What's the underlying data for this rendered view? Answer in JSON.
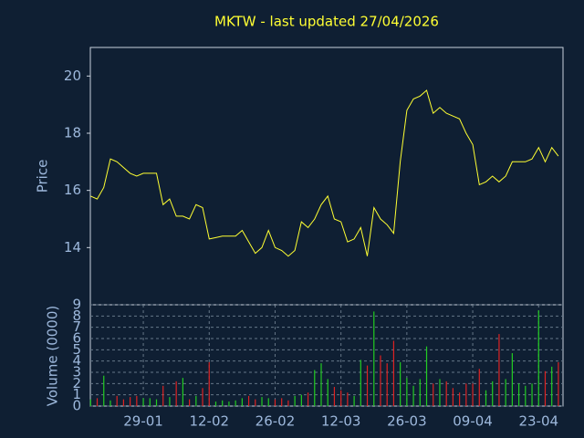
{
  "chart_data": [
    {
      "type": "line",
      "title": "MKTW - last updated 27/04/2026",
      "y_label": "Price",
      "color": "#ffff33",
      "ylim": [
        12,
        21
      ],
      "yticks": [
        14,
        16,
        18,
        20
      ],
      "grid": false,
      "values": [
        15.8,
        15.7,
        16.1,
        17.1,
        17.0,
        16.8,
        16.6,
        16.5,
        16.6,
        16.6,
        16.6,
        15.5,
        15.7,
        15.1,
        15.1,
        15.0,
        15.5,
        15.4,
        14.3,
        14.35,
        14.4,
        14.4,
        14.4,
        14.6,
        14.2,
        13.8,
        14.0,
        14.6,
        14.0,
        13.9,
        13.7,
        13.9,
        14.9,
        14.7,
        15.0,
        15.5,
        15.8,
        15.0,
        14.9,
        14.2,
        14.3,
        14.7,
        13.7,
        15.4,
        15.0,
        14.8,
        14.5,
        17.0,
        18.8,
        19.2,
        19.3,
        19.5,
        18.7,
        18.9,
        18.7,
        18.6,
        18.5,
        18.0,
        17.6,
        16.2,
        16.3,
        16.5,
        16.3,
        16.5,
        17.0,
        17.0,
        17.0,
        17.1,
        17.5,
        17.0,
        17.5,
        17.2
      ]
    },
    {
      "type": "bar",
      "y_label": "Volume (0000)",
      "up_color": "#22cc22",
      "down_color": "#dd2222",
      "ylim": [
        0,
        9
      ],
      "yticks": [
        0,
        1,
        2,
        3,
        4,
        5,
        6,
        7,
        8,
        9
      ],
      "grid": true,
      "categories": [
        null,
        null,
        null,
        null,
        null,
        null,
        null,
        null,
        "29-01",
        null,
        null,
        null,
        null,
        null,
        null,
        null,
        null,
        null,
        "12-02",
        null,
        null,
        null,
        null,
        null,
        null,
        null,
        null,
        null,
        "26-02",
        null,
        null,
        null,
        null,
        null,
        null,
        null,
        null,
        null,
        "12-03",
        null,
        null,
        null,
        null,
        null,
        null,
        null,
        null,
        null,
        "26-03",
        null,
        null,
        null,
        null,
        null,
        null,
        null,
        null,
        null,
        "09-04",
        null,
        null,
        null,
        null,
        null,
        null,
        null,
        null,
        null,
        "23-04",
        null,
        null,
        null
      ],
      "values": [
        0.6,
        0.7,
        2.7,
        0.5,
        0.9,
        0.6,
        0.8,
        0.9,
        0.7,
        0.7,
        0.6,
        1.8,
        0.8,
        2.2,
        2.5,
        0.6,
        0.9,
        1.6,
        3.9,
        0.4,
        0.5,
        0.4,
        0.5,
        0.7,
        0.9,
        0.6,
        0.8,
        0.7,
        0.6,
        0.7,
        0.5,
        0.9,
        1.0,
        1.2,
        3.2,
        3.8,
        2.4,
        1.7,
        1.4,
        1.2,
        0.9,
        4.1,
        3.6,
        8.4,
        4.5,
        3.8,
        5.8,
        3.9,
        2.5,
        1.8,
        2.4,
        5.3,
        2.0,
        2.4,
        2.2,
        1.6,
        1.2,
        2.0,
        2.0,
        3.3,
        1.4,
        2.2,
        6.4,
        2.4,
        4.7,
        2.0,
        1.8,
        2.0,
        8.5,
        3.1,
        3.5,
        3.9
      ]
    }
  ]
}
